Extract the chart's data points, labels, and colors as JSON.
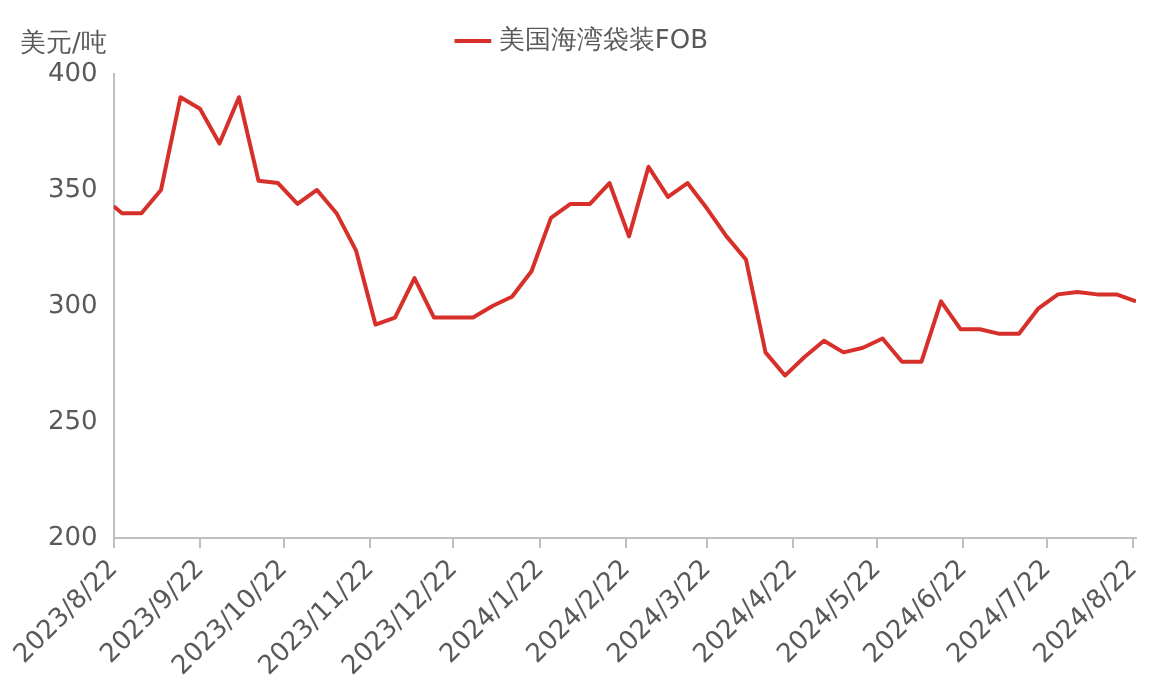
{
  "chart_data": {
    "type": "line",
    "ylabel": "美元/吨",
    "legend": "top",
    "x": [
      "2023-08-22",
      "2023-08-25",
      "2023-09-01",
      "2023-09-08",
      "2023-09-15",
      "2023-09-22",
      "2023-09-29",
      "2023-10-06",
      "2023-10-13",
      "2023-10-20",
      "2023-10-27",
      "2023-11-03",
      "2023-11-10",
      "2023-11-17",
      "2023-11-24",
      "2023-12-01",
      "2023-12-08",
      "2023-12-15",
      "2023-12-22",
      "2023-12-29",
      "2024-01-05",
      "2024-01-12",
      "2024-01-19",
      "2024-01-26",
      "2024-02-02",
      "2024-02-09",
      "2024-02-16",
      "2024-02-23",
      "2024-03-01",
      "2024-03-08",
      "2024-03-15",
      "2024-03-22",
      "2024-03-29",
      "2024-04-05",
      "2024-04-12",
      "2024-04-19",
      "2024-04-26",
      "2024-05-03",
      "2024-05-10",
      "2024-05-17",
      "2024-05-24",
      "2024-05-31",
      "2024-06-07",
      "2024-06-14",
      "2024-06-21",
      "2024-06-28",
      "2024-07-05",
      "2024-07-12",
      "2024-07-19",
      "2024-07-26",
      "2024-08-02",
      "2024-08-09",
      "2024-08-16",
      "2024-08-23"
    ],
    "series": [
      {
        "name": "美国海湾袋装FOB",
        "color": "#d7302a",
        "values": [
          343,
          340,
          340,
          350,
          390,
          385,
          370,
          390,
          354,
          353,
          344,
          350,
          340,
          324,
          292,
          295,
          312,
          295,
          295,
          295,
          300,
          304,
          315,
          338,
          344,
          344,
          353,
          330,
          360,
          347,
          353,
          342,
          330,
          320,
          280,
          270,
          278,
          285,
          280,
          282,
          286,
          276,
          276,
          302,
          290,
          290,
          288,
          288,
          299,
          305,
          306,
          305,
          305,
          302
        ]
      }
    ],
    "xlim": [
      "2023-08-22",
      "2024-08-23"
    ],
    "xticks": [
      {
        "value": "2023-08-22",
        "label": "2023/8/22"
      },
      {
        "value": "2023-09-22",
        "label": "2023/9/22"
      },
      {
        "value": "2023-10-22",
        "label": "2023/10/22"
      },
      {
        "value": "2023-11-22",
        "label": "2023/11/22"
      },
      {
        "value": "2023-12-22",
        "label": "2023/12/22"
      },
      {
        "value": "2024-01-22",
        "label": "2024/1/22"
      },
      {
        "value": "2024-02-22",
        "label": "2024/2/22"
      },
      {
        "value": "2024-03-22",
        "label": "2024/3/22"
      },
      {
        "value": "2024-04-22",
        "label": "2024/4/22"
      },
      {
        "value": "2024-05-22",
        "label": "2024/5/22"
      },
      {
        "value": "2024-06-22",
        "label": "2024/6/22"
      },
      {
        "value": "2024-07-22",
        "label": "2024/7/22"
      },
      {
        "value": "2024-08-22",
        "label": "2024/8/22"
      }
    ],
    "ylim": [
      200,
      400
    ],
    "yticks": [
      200,
      250,
      300,
      350,
      400
    ],
    "grid": false,
    "marker": "none",
    "line_style": "solid"
  }
}
